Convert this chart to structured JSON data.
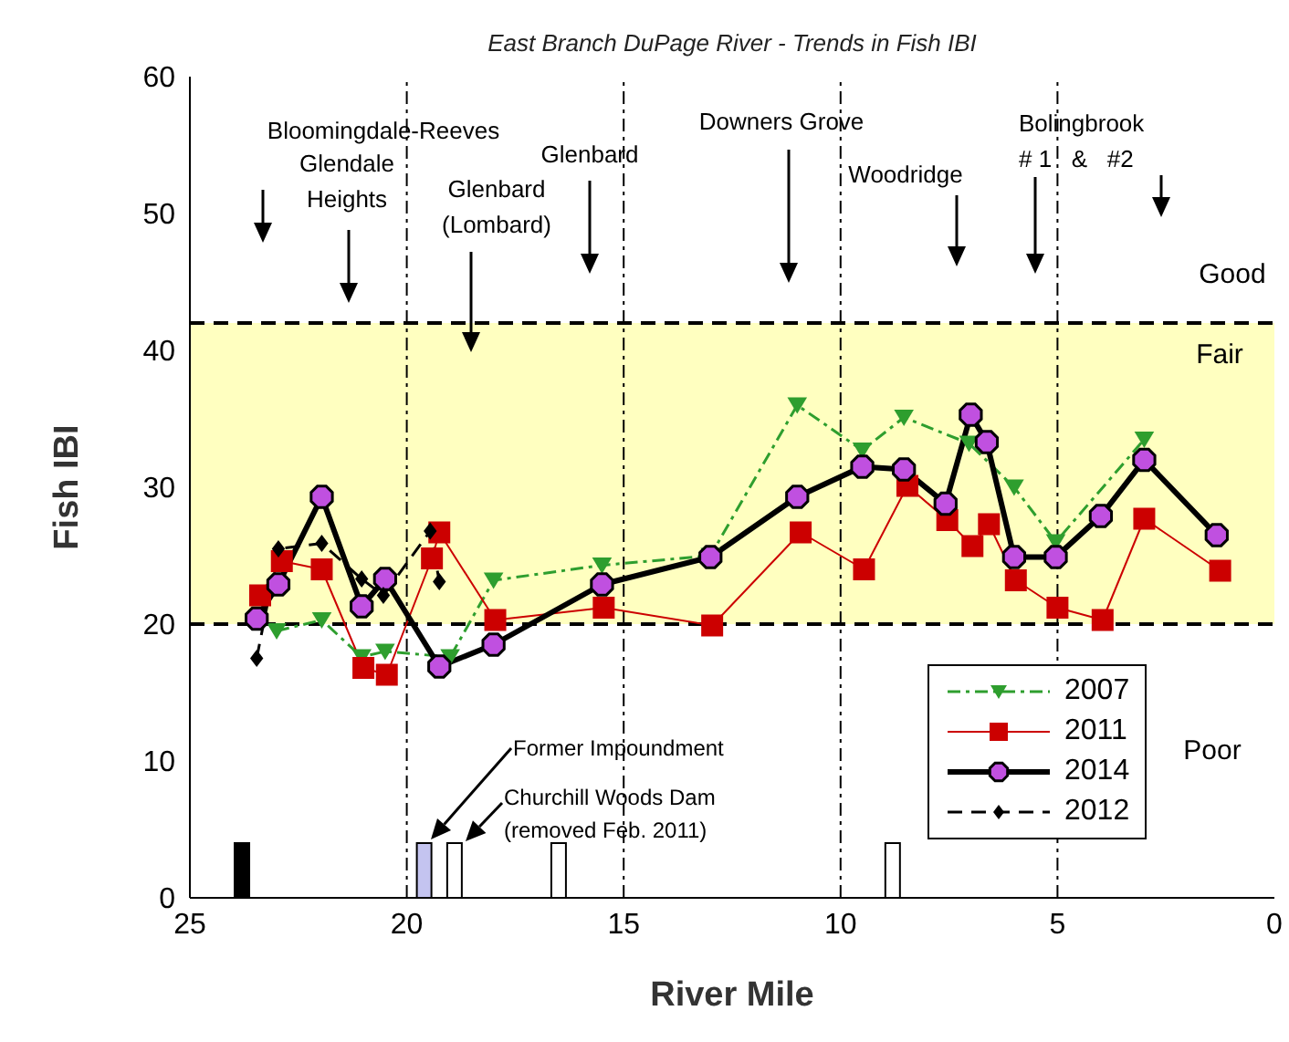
{
  "chart_data": {
    "type": "line",
    "title": "East Branch DuPage River - Trends in Fish IBI",
    "xlabel": "River Mile",
    "ylabel": "Fish IBI",
    "xlim": [
      25,
      0
    ],
    "xticks": [
      25,
      20,
      15,
      10,
      5,
      0
    ],
    "ylim": [
      0,
      60
    ],
    "yticks": [
      0,
      10,
      20,
      30,
      40,
      50,
      60
    ],
    "grid": false,
    "legend": "bottom right",
    "series": [
      {
        "name": "2007",
        "color": "#2e9e2e",
        "marker": "triangle",
        "line_style": "dotted",
        "x": [
          23.0,
          21.96,
          21.04,
          20.5,
          19.0,
          18.0,
          15.5,
          13.0,
          11.0,
          9.5,
          8.54,
          7.04,
          6.0,
          5.04,
          3.0
        ],
        "values": [
          19.5,
          20.3,
          17.6,
          18.0,
          17.6,
          23.2,
          24.3,
          25,
          36,
          32.7,
          35.1,
          33.2,
          30,
          26,
          33.5
        ]
      },
      {
        "name": "2011",
        "color": "#cc0000",
        "marker": "square",
        "line_style": "solid",
        "x": [
          23.38,
          22.88,
          21.96,
          21.0,
          20.46,
          19.42,
          19.25,
          17.96,
          15.46,
          12.96,
          10.92,
          9.46,
          8.46,
          7.54,
          6.96,
          6.58,
          5.96,
          5.0,
          3.96,
          3.0,
          1.25
        ],
        "values": [
          22.1,
          24.6,
          24.0,
          16.8,
          16.3,
          24.8,
          26.7,
          20.3,
          21.2,
          19.9,
          26.7,
          24.0,
          30.1,
          27.6,
          25.7,
          27.3,
          23.2,
          21.2,
          20.3,
          27.7,
          23.9
        ]
      },
      {
        "name": "2014",
        "color": "#c050e0",
        "marker": "circle",
        "line_style": "solid",
        "x": [
          23.46,
          22.96,
          21.96,
          21.04,
          20.5,
          19.25,
          18.0,
          15.5,
          13.0,
          11.0,
          9.5,
          8.54,
          7.58,
          7.0,
          6.63,
          6.0,
          5.04,
          4.0,
          3.0,
          1.33
        ],
        "values": [
          20.4,
          22.9,
          29.3,
          21.3,
          23.3,
          16.9,
          18.5,
          22.9,
          24.9,
          29.3,
          31.5,
          31.3,
          28.8,
          35.3,
          33.3,
          24.9,
          24.9,
          27.9,
          32,
          26.5
        ]
      },
      {
        "name": "2012",
        "color": "#000000",
        "marker": "diamond",
        "line_style": "dashed",
        "x": [
          23.46,
          22.96,
          21.96,
          21.04,
          20.54,
          19.46,
          19.25
        ],
        "values": [
          17.5,
          25.5,
          25.9,
          23.3,
          22.1,
          26.8,
          23.1
        ]
      },
      {
        "type": "bar",
        "x": [
          23.8,
          19.6,
          18.9,
          16.5,
          8.8
        ],
        "values": [
          4,
          4,
          4,
          4,
          4
        ],
        "colors": [
          "#000000",
          "#c4c4f0",
          "#ffffff",
          "#ffffff",
          "#ffffff"
        ]
      }
    ],
    "bands": [
      {
        "axis": "y",
        "from": 20,
        "to": 42,
        "label": "Fair",
        "color": "#ffffc0"
      }
    ],
    "ref_lines": [
      {
        "axis": "y",
        "value": 42,
        "color": "#000000",
        "line_style": "dashed"
      },
      {
        "axis": "y",
        "value": 20,
        "color": "#000000",
        "line_style": "dashed"
      },
      {
        "axis": "x",
        "value": 20,
        "color": "#000000",
        "line_style": "dotted"
      },
      {
        "axis": "x",
        "value": 15,
        "color": "#000000",
        "line_style": "dotted"
      },
      {
        "axis": "x",
        "value": 10,
        "color": "#000000",
        "line_style": "dotted"
      },
      {
        "axis": "x",
        "value": 5,
        "color": "#000000",
        "line_style": "dotted"
      }
    ],
    "annotations": [
      "Bloomingdale-Reeves",
      "Glendale\nHeights",
      "Glenbard\n(Lombard)",
      "Glenbard",
      "Downers Grove",
      "Woodridge",
      "Bolingbrook\n# 1   &   #2",
      "Good",
      "Poor",
      "Former Impoundment",
      "Churchill Woods Dam\n(removed Feb. 2011)"
    ]
  }
}
